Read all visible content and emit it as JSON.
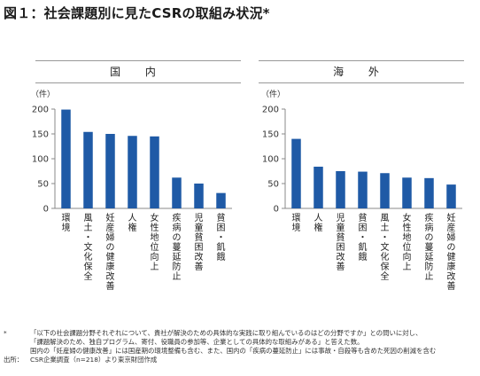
{
  "title": "図１：社会課題別に見たCSRの取組み状況*",
  "chart_data": [
    {
      "type": "bar",
      "panel_title": "国 内",
      "ylabel": "（件）",
      "ylim": [
        0,
        200
      ],
      "yticks": [
        0,
        50,
        100,
        150,
        200
      ],
      "categories": [
        "環境",
        "風土・文化保全",
        "妊産婦の健康改善",
        "人権",
        "女性地位向上",
        "疾病の蔓延防止",
        "児童貧困改善",
        "貧困・飢餓"
      ],
      "values": [
        199,
        154,
        150,
        146,
        145,
        62,
        50,
        31
      ],
      "color": "#1f5aa6"
    },
    {
      "type": "bar",
      "panel_title": "海 外",
      "ylabel": "（件）",
      "ylim": [
        0,
        200
      ],
      "yticks": [
        0,
        50,
        100,
        150,
        200
      ],
      "categories": [
        "環境",
        "人権",
        "児童貧困改善",
        "貧困・飢餓",
        "風土・文化保全",
        "女性地位向上",
        "疾病の蔓延防止",
        "妊産婦の健康改善"
      ],
      "values": [
        140,
        84,
        75,
        74,
        71,
        62,
        61,
        48
      ],
      "color": "#1f5aa6"
    }
  ],
  "notes": [
    {
      "mark": "*",
      "text": "「以下の社会課題分野それぞれについて、貴社が解決のための具体的な実践に取り組んでいるのはどの分野ですか」との問いに対し、"
    },
    {
      "mark": "",
      "text": "「課題解決のため、独自プログラム、寄付、役職員の参加等、企業としての具体的な取組みがある」と答えた数。"
    },
    {
      "mark": "",
      "text": "国内の「妊産婦の健康改善」には国産期の環境整備も含む、また、国内の「疾病の蔓延防止」には事故・自殺等も含めた死因の削減を含む"
    },
    {
      "mark": "出所：",
      "text": "CSR企業調査（n=218）より東京財団作成"
    }
  ]
}
